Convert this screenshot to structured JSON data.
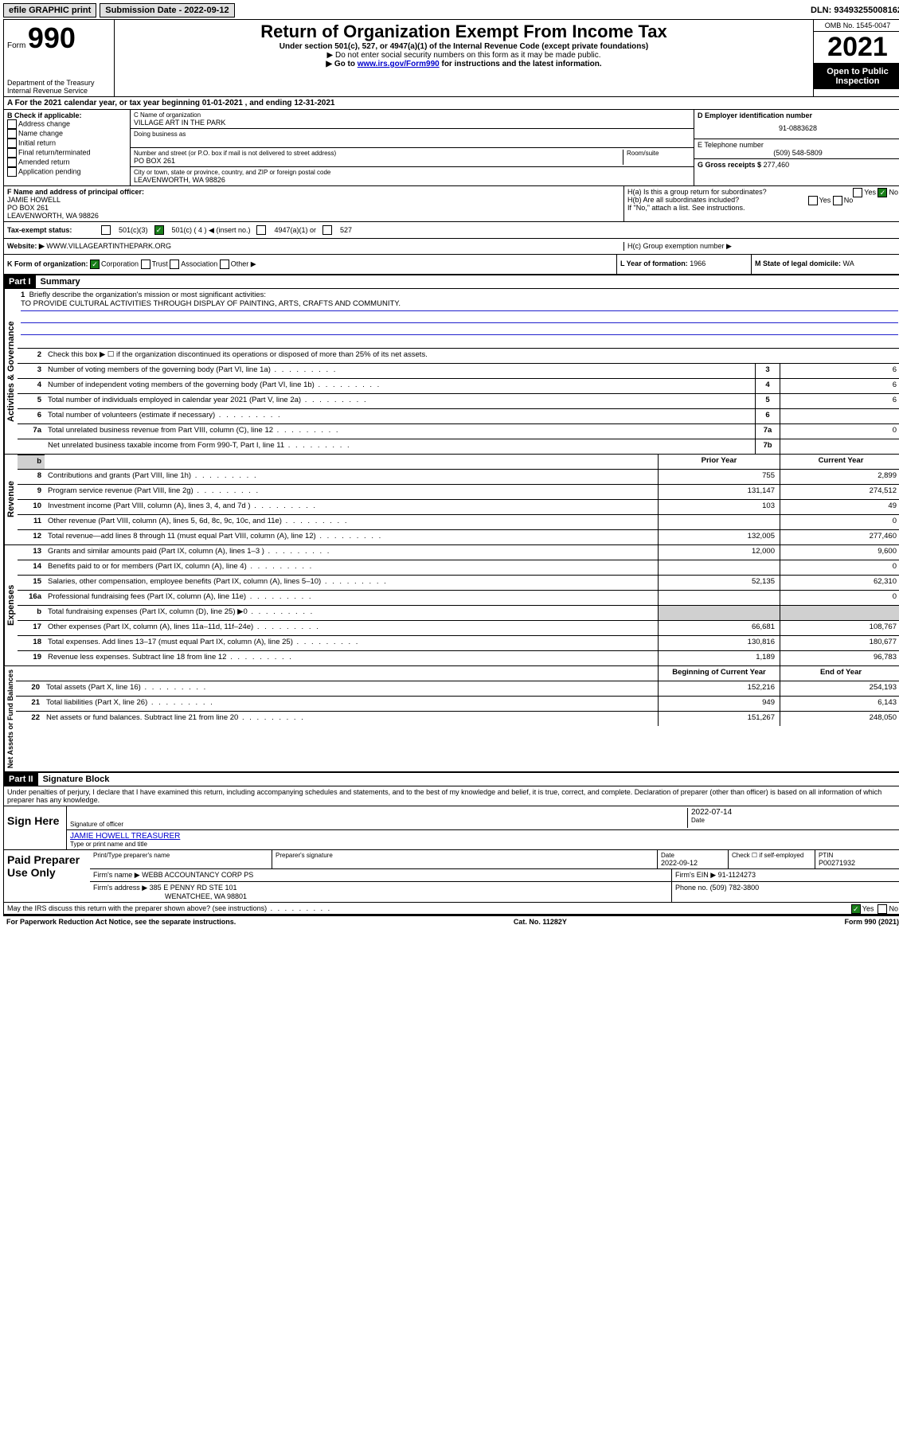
{
  "topbar": {
    "efile": "efile GRAPHIC print",
    "submission_label": "Submission Date - 2022-09-12",
    "dln_label": "DLN: 93493255008162"
  },
  "header": {
    "form_prefix": "Form",
    "form_number": "990",
    "dept": "Department of the Treasury",
    "irs": "Internal Revenue Service",
    "title": "Return of Organization Exempt From Income Tax",
    "line1": "Under section 501(c), 527, or 4947(a)(1) of the Internal Revenue Code (except private foundations)",
    "line2": "▶ Do not enter social security numbers on this form as it may be made public.",
    "line3_pre": "▶ Go to ",
    "line3_link": "www.irs.gov/Form990",
    "line3_post": " for instructions and the latest information.",
    "omb": "OMB No. 1545-0047",
    "year": "2021",
    "open": "Open to Public Inspection"
  },
  "period": {
    "text": "A For the 2021 calendar year, or tax year beginning 01-01-2021   , and ending 12-31-2021"
  },
  "boxB": {
    "title": "B Check if applicable:",
    "opts": [
      "Address change",
      "Name change",
      "Initial return",
      "Final return/terminated",
      "Amended return",
      "Application pending"
    ]
  },
  "boxC": {
    "name_label": "C Name of organization",
    "name": "VILLAGE ART IN THE PARK",
    "dba_label": "Doing business as",
    "addr_label": "Number and street (or P.O. box if mail is not delivered to street address)",
    "room_label": "Room/suite",
    "addr": "PO BOX 261",
    "city_label": "City or town, state or province, country, and ZIP or foreign postal code",
    "city": "LEAVENWORTH, WA  98826"
  },
  "boxD": {
    "label": "D Employer identification number",
    "value": "91-0883628"
  },
  "boxE": {
    "label": "E Telephone number",
    "value": "(509) 548-5809"
  },
  "boxG": {
    "label": "G Gross receipts $",
    "value": "277,460"
  },
  "boxF": {
    "label": "F Name and address of principal officer:",
    "name": "JAMIE HOWELL",
    "addr1": "PO BOX 261",
    "addr2": "LEAVENWORTH, WA  98826"
  },
  "boxH": {
    "a": "H(a)  Is this a group return for subordinates?",
    "b": "H(b)  Are all subordinates included?",
    "b_note": "If \"No,\" attach a list. See instructions.",
    "c": "H(c)  Group exemption number ▶",
    "yes": "Yes",
    "no": "No"
  },
  "boxI": {
    "label": "Tax-exempt status:",
    "c3": "501(c)(3)",
    "c": "501(c) ( 4 ) ◀ (insert no.)",
    "a1": "4947(a)(1) or",
    "527": "527"
  },
  "boxJ": {
    "label": "Website: ▶",
    "value": "WWW.VILLAGEARTINTHEPARK.ORG"
  },
  "boxK": {
    "label": "K Form of organization:",
    "corp": "Corporation",
    "trust": "Trust",
    "assoc": "Association",
    "other": "Other ▶"
  },
  "boxL": {
    "label": "L Year of formation:",
    "value": "1966"
  },
  "boxM": {
    "label": "M State of legal domicile:",
    "value": "WA"
  },
  "part1": {
    "label": "Part I",
    "title": "Summary",
    "line1_label": "Briefly describe the organization's mission or most significant activities:",
    "mission": "TO PROVIDE CULTURAL ACTIVITIES THROUGH DISPLAY OF PAINTING, ARTS, CRAFTS AND COMMUNITY.",
    "line2": "Check this box ▶ ☐  if the organization discontinued its operations or disposed of more than 25% of its net assets.",
    "gov_label": "Activities & Governance",
    "rev_label": "Revenue",
    "exp_label": "Expenses",
    "net_label": "Net Assets or Fund Balances",
    "prior_header": "Prior Year",
    "current_header": "Current Year",
    "boy_header": "Beginning of Current Year",
    "eoy_header": "End of Year",
    "gov_lines": [
      {
        "n": "3",
        "t": "Number of voting members of the governing body (Part VI, line 1a)",
        "box": "3",
        "v": "6"
      },
      {
        "n": "4",
        "t": "Number of independent voting members of the governing body (Part VI, line 1b)",
        "box": "4",
        "v": "6"
      },
      {
        "n": "5",
        "t": "Total number of individuals employed in calendar year 2021 (Part V, line 2a)",
        "box": "5",
        "v": "6"
      },
      {
        "n": "6",
        "t": "Total number of volunteers (estimate if necessary)",
        "box": "6",
        "v": ""
      },
      {
        "n": "7a",
        "t": "Total unrelated business revenue from Part VIII, column (C), line 12",
        "box": "7a",
        "v": "0"
      },
      {
        "n": "",
        "t": "Net unrelated business taxable income from Form 990-T, Part I, line 11",
        "box": "7b",
        "v": ""
      }
    ],
    "rev_lines": [
      {
        "n": "8",
        "t": "Contributions and grants (Part VIII, line 1h)",
        "p": "755",
        "c": "2,899"
      },
      {
        "n": "9",
        "t": "Program service revenue (Part VIII, line 2g)",
        "p": "131,147",
        "c": "274,512"
      },
      {
        "n": "10",
        "t": "Investment income (Part VIII, column (A), lines 3, 4, and 7d )",
        "p": "103",
        "c": "49"
      },
      {
        "n": "11",
        "t": "Other revenue (Part VIII, column (A), lines 5, 6d, 8c, 9c, 10c, and 11e)",
        "p": "",
        "c": "0"
      },
      {
        "n": "12",
        "t": "Total revenue—add lines 8 through 11 (must equal Part VIII, column (A), line 12)",
        "p": "132,005",
        "c": "277,460"
      }
    ],
    "exp_lines": [
      {
        "n": "13",
        "t": "Grants and similar amounts paid (Part IX, column (A), lines 1–3 )",
        "p": "12,000",
        "c": "9,600"
      },
      {
        "n": "14",
        "t": "Benefits paid to or for members (Part IX, column (A), line 4)",
        "p": "",
        "c": "0"
      },
      {
        "n": "15",
        "t": "Salaries, other compensation, employee benefits (Part IX, column (A), lines 5–10)",
        "p": "52,135",
        "c": "62,310"
      },
      {
        "n": "16a",
        "t": "Professional fundraising fees (Part IX, column (A), line 11e)",
        "p": "",
        "c": "0"
      },
      {
        "n": "b",
        "t": "Total fundraising expenses (Part IX, column (D), line 25) ▶0",
        "p": "",
        "c": "",
        "shaded": true
      },
      {
        "n": "17",
        "t": "Other expenses (Part IX, column (A), lines 11a–11d, 11f–24e)",
        "p": "66,681",
        "c": "108,767"
      },
      {
        "n": "18",
        "t": "Total expenses. Add lines 13–17 (must equal Part IX, column (A), line 25)",
        "p": "130,816",
        "c": "180,677"
      },
      {
        "n": "19",
        "t": "Revenue less expenses. Subtract line 18 from line 12",
        "p": "1,189",
        "c": "96,783"
      }
    ],
    "net_lines": [
      {
        "n": "20",
        "t": "Total assets (Part X, line 16)",
        "p": "152,216",
        "c": "254,193"
      },
      {
        "n": "21",
        "t": "Total liabilities (Part X, line 26)",
        "p": "949",
        "c": "6,143"
      },
      {
        "n": "22",
        "t": "Net assets or fund balances. Subtract line 21 from line 20",
        "p": "151,267",
        "c": "248,050"
      }
    ]
  },
  "part2": {
    "label": "Part II",
    "title": "Signature Block",
    "decl": "Under penalties of perjury, I declare that I have examined this return, including accompanying schedules and statements, and to the best of my knowledge and belief, it is true, correct, and complete. Declaration of preparer (other than officer) is based on all information of which preparer has any knowledge.",
    "sign_here": "Sign Here",
    "sig_officer": "Signature of officer",
    "sig_date_label": "Date",
    "sig_date": "2022-07-14",
    "officer_name": "JAMIE HOWELL TREASURER",
    "type_name": "Type or print name and title",
    "paid_label": "Paid Preparer Use Only",
    "prep_name_label": "Print/Type preparer's name",
    "prep_sig_label": "Preparer's signature",
    "prep_date_label": "Date",
    "prep_date": "2022-09-12",
    "check_label": "Check ☐ if self-employed",
    "ptin_label": "PTIN",
    "ptin": "P00271932",
    "firm_name_label": "Firm's name    ▶",
    "firm_name": "WEBB ACCOUNTANCY CORP PS",
    "firm_ein_label": "Firm's EIN ▶",
    "firm_ein": "91-1124273",
    "firm_addr_label": "Firm's address ▶",
    "firm_addr1": "385 E PENNY RD STE 101",
    "firm_addr2": "WENATCHEE, WA  98801",
    "phone_label": "Phone no.",
    "phone": "(509) 782-3800",
    "discuss": "May the IRS discuss this return with the preparer shown above? (see instructions)",
    "yes": "Yes",
    "no": "No"
  },
  "footer": {
    "left": "For Paperwork Reduction Act Notice, see the separate instructions.",
    "mid": "Cat. No. 11282Y",
    "right": "Form 990 (2021)"
  }
}
